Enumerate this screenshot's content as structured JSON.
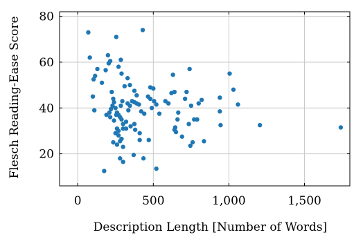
{
  "chart_data": {
    "type": "scatter",
    "title": "",
    "xlabel": "Description Length [Number of Words]",
    "ylabel": "Flesch Reading-Ease Score",
    "xlim": [
      -120,
      1800
    ],
    "ylim": [
      6,
      82
    ],
    "xticks": [
      0,
      500,
      1000,
      1500
    ],
    "xtick_labels": [
      "0",
      "500",
      "1,000",
      "1,500"
    ],
    "yticks": [
      20,
      40,
      60,
      80
    ],
    "ytick_labels": [
      "20",
      "40",
      "60",
      "80"
    ],
    "grid": true,
    "legend": "none",
    "marker_color": "#1f77b4",
    "series": [
      {
        "points": [
          [
            70,
            73
          ],
          [
            80,
            62
          ],
          [
            100,
            45
          ],
          [
            110,
            39
          ],
          [
            115,
            54
          ],
          [
            105,
            52.5
          ],
          [
            130,
            57
          ],
          [
            160,
            51
          ],
          [
            185,
            56.5
          ],
          [
            200,
            63
          ],
          [
            205,
            59.5
          ],
          [
            215,
            60.5
          ],
          [
            190,
            37
          ],
          [
            210,
            38
          ],
          [
            220,
            39.5
          ],
          [
            230,
            41
          ],
          [
            240,
            42.5
          ],
          [
            250,
            40
          ],
          [
            260,
            38
          ],
          [
            270,
            37
          ],
          [
            280,
            36
          ],
          [
            290,
            35
          ],
          [
            300,
            33
          ],
          [
            320,
            34
          ],
          [
            335,
            39
          ],
          [
            345,
            41
          ],
          [
            225,
            47
          ],
          [
            235,
            44
          ],
          [
            255,
            37
          ],
          [
            285,
            41
          ],
          [
            295,
            43
          ],
          [
            330,
            42
          ],
          [
            360,
            43
          ],
          [
            375,
            42.5
          ],
          [
            390,
            42
          ],
          [
            405,
            41.5
          ],
          [
            420,
            38.5
          ],
          [
            440,
            37.5
          ],
          [
            465,
            45
          ],
          [
            480,
            44
          ],
          [
            490,
            40
          ],
          [
            505,
            43
          ],
          [
            520,
            41.5
          ],
          [
            540,
            37.5
          ],
          [
            215,
            36
          ],
          [
            240,
            34.5
          ],
          [
            260,
            31
          ],
          [
            270,
            30
          ],
          [
            300,
            31
          ],
          [
            320,
            31
          ],
          [
            350,
            32
          ],
          [
            375,
            33
          ],
          [
            380,
            30.5
          ],
          [
            410,
            29
          ],
          [
            250,
            29
          ],
          [
            270,
            28
          ],
          [
            290,
            26.5
          ],
          [
            235,
            25
          ],
          [
            260,
            24
          ],
          [
            280,
            25.5
          ],
          [
            300,
            23
          ],
          [
            255,
            71
          ],
          [
            270,
            58
          ],
          [
            285,
            61
          ],
          [
            290,
            55
          ],
          [
            310,
            49.5
          ],
          [
            330,
            53
          ],
          [
            345,
            50
          ],
          [
            375,
            47.5
          ],
          [
            390,
            45.5
          ],
          [
            430,
            74
          ],
          [
            480,
            49
          ],
          [
            500,
            48.5
          ],
          [
            470,
            26
          ],
          [
            410,
            26
          ],
          [
            370,
            19.5
          ],
          [
            280,
            18
          ],
          [
            300,
            16.5
          ],
          [
            175,
            12.5
          ],
          [
            435,
            18
          ],
          [
            520,
            13.5
          ],
          [
            580,
            43
          ],
          [
            600,
            42
          ],
          [
            620,
            46.5
          ],
          [
            640,
            47
          ],
          [
            630,
            54.5
          ],
          [
            640,
            30.5
          ],
          [
            645,
            31.5
          ],
          [
            650,
            29.5
          ],
          [
            660,
            35
          ],
          [
            665,
            38
          ],
          [
            690,
            27.5
          ],
          [
            710,
            44
          ],
          [
            720,
            47
          ],
          [
            740,
            57
          ],
          [
            750,
            41
          ],
          [
            760,
            25
          ],
          [
            745,
            23.5
          ],
          [
            735,
            33
          ],
          [
            770,
            35
          ],
          [
            790,
            35
          ],
          [
            800,
            42
          ],
          [
            820,
            43.5
          ],
          [
            835,
            25.5
          ],
          [
            940,
            44.5
          ],
          [
            940,
            38.5
          ],
          [
            945,
            32.5
          ],
          [
            1005,
            55
          ],
          [
            1030,
            48
          ],
          [
            1060,
            41.5
          ],
          [
            1205,
            32.5
          ],
          [
            1740,
            31.5
          ]
        ]
      }
    ]
  }
}
